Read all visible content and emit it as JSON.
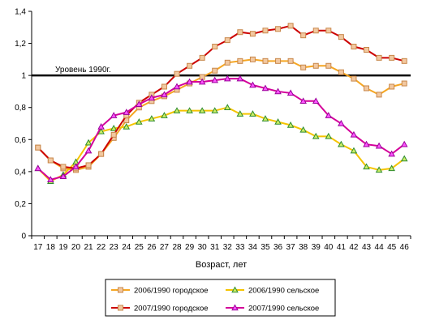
{
  "chart_data": {
    "type": "line",
    "title": "",
    "xlabel": "Возраст, лет",
    "ylabel": "",
    "ylim": [
      0,
      1.4
    ],
    "y_ticks": [
      "0",
      "0,2",
      "0,4",
      "0,6",
      "0,8",
      "1",
      "1,2",
      "1,4"
    ],
    "y_tick_values": [
      0,
      0.2,
      0.4,
      0.6,
      0.8,
      1.0,
      1.2,
      1.4
    ],
    "grid": false,
    "legend_position": "bottom",
    "x": [
      17,
      18,
      19,
      20,
      21,
      22,
      23,
      24,
      25,
      26,
      27,
      28,
      29,
      30,
      31,
      32,
      33,
      34,
      35,
      36,
      37,
      38,
      39,
      40,
      41,
      42,
      43,
      44,
      45,
      46
    ],
    "reference_line": {
      "value": 1.0,
      "label": "Уровень 1990г.",
      "color": "#000000"
    },
    "series": [
      {
        "name": "2006/1990 городское",
        "line_color": "#F5A623",
        "marker": "square",
        "marker_fill": "#F2C8A0",
        "marker_stroke": "#C8874A",
        "values": [
          0.55,
          0.47,
          0.42,
          0.41,
          0.43,
          0.51,
          0.61,
          0.72,
          0.8,
          0.84,
          0.87,
          0.91,
          0.95,
          0.99,
          1.03,
          1.08,
          1.09,
          1.1,
          1.09,
          1.09,
          1.09,
          1.05,
          1.06,
          1.06,
          1.02,
          0.98,
          0.92,
          0.88,
          0.93,
          0.95
        ]
      },
      {
        "name": "2006/1990 сельское",
        "line_color": "#F5C400",
        "marker": "triangle",
        "marker_fill": "#CCEE66",
        "marker_stroke": "#2E8B2E",
        "values": [
          0.42,
          0.34,
          0.38,
          0.46,
          0.58,
          0.65,
          0.67,
          0.68,
          0.71,
          0.73,
          0.75,
          0.78,
          0.78,
          0.78,
          0.78,
          0.8,
          0.76,
          0.76,
          0.73,
          0.71,
          0.69,
          0.66,
          0.62,
          0.62,
          0.57,
          0.53,
          0.43,
          0.41,
          0.42,
          0.48
        ]
      },
      {
        "name": "2007/1990 городское",
        "line_color": "#CC0000",
        "marker": "square",
        "marker_fill": "#F2C8A0",
        "marker_stroke": "#C8874A",
        "values": [
          0.55,
          0.47,
          0.43,
          0.42,
          0.44,
          0.51,
          0.63,
          0.75,
          0.83,
          0.88,
          0.93,
          1.01,
          1.06,
          1.11,
          1.18,
          1.22,
          1.27,
          1.26,
          1.28,
          1.29,
          1.31,
          1.25,
          1.28,
          1.28,
          1.24,
          1.18,
          1.16,
          1.11,
          1.11,
          1.09
        ]
      },
      {
        "name": "2007/1990 сельское",
        "line_color": "#D4009A",
        "marker": "triangle",
        "marker_fill": "#FF55FF",
        "marker_stroke": "#990099",
        "values": [
          0.42,
          0.35,
          0.37,
          0.43,
          0.53,
          0.68,
          0.75,
          0.77,
          0.82,
          0.86,
          0.88,
          0.93,
          0.96,
          0.96,
          0.97,
          0.98,
          0.98,
          0.94,
          0.92,
          0.9,
          0.89,
          0.84,
          0.84,
          0.75,
          0.7,
          0.63,
          0.57,
          0.56,
          0.51,
          0.57
        ]
      }
    ]
  }
}
